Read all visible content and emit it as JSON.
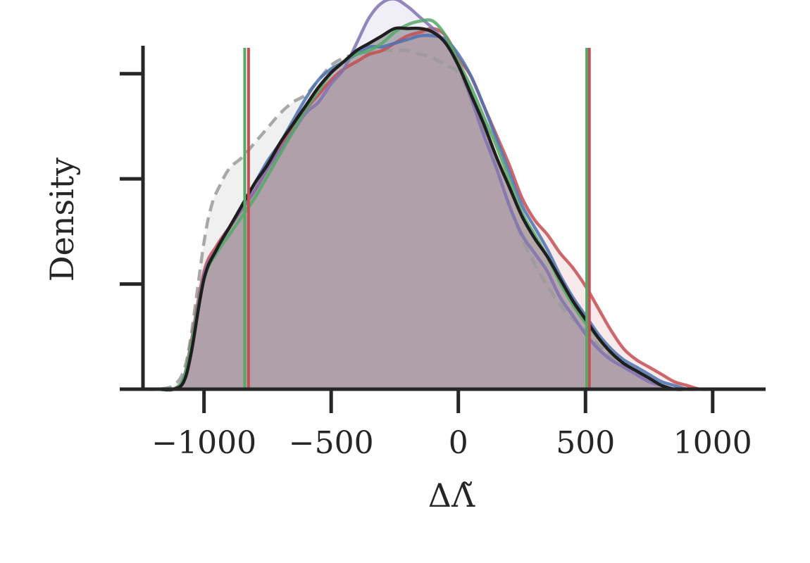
{
  "chart_data": {
    "type": "area",
    "xlabel": "ΔΛ̃",
    "ylabel": "Density",
    "xlim": [
      -1240,
      1200
    ],
    "ylim": [
      0,
      1.0
    ],
    "x_ticks": [
      -1000,
      -500,
      0,
      500,
      1000
    ],
    "x_tick_labels": [
      "−1000",
      "−500",
      "0",
      "500",
      "1000"
    ],
    "y_ticks": [
      0.2857,
      0.5714,
      0.8571
    ],
    "grid": false,
    "legend": "none",
    "series": [
      {
        "color": "#9a9a9a",
        "style": "dashed",
        "fill": "#f0f0f0",
        "x": [
          -1240,
          -1180,
          -1120,
          -1080,
          -1050,
          -1000,
          -970,
          -940,
          -900,
          -850,
          -800,
          -750,
          -700,
          -650,
          -600,
          -550,
          -500,
          -450,
          -400,
          -350,
          -300,
          -250,
          -200,
          -150,
          -100,
          -50,
          0,
          50,
          100,
          150,
          200,
          250,
          300,
          350,
          400,
          450,
          500,
          550,
          600,
          650,
          700,
          750,
          800,
          850,
          900,
          950,
          1000,
          1100,
          1200
        ],
        "y": [
          0.0,
          0.0,
          0.01,
          0.05,
          0.15,
          0.4,
          0.5,
          0.55,
          0.6,
          0.63,
          0.67,
          0.71,
          0.75,
          0.78,
          0.8,
          0.84,
          0.88,
          0.9,
          0.91,
          0.91,
          0.92,
          0.92,
          0.92,
          0.91,
          0.9,
          0.88,
          0.86,
          0.79,
          0.7,
          0.6,
          0.5,
          0.41,
          0.34,
          0.28,
          0.23,
          0.19,
          0.16,
          0.12,
          0.09,
          0.06,
          0.04,
          0.02,
          0.01,
          0.0,
          0.0,
          0.0,
          0.0,
          0.0,
          0.0
        ]
      },
      {
        "color": "#c44e52",
        "style": "solid",
        "x": [
          -1240,
          -1180,
          -1120,
          -1080,
          -1050,
          -1000,
          -950,
          -900,
          -850,
          -800,
          -750,
          -700,
          -650,
          -600,
          -550,
          -500,
          -450,
          -400,
          -350,
          -300,
          -250,
          -200,
          -150,
          -100,
          -50,
          0,
          50,
          100,
          150,
          200,
          250,
          300,
          350,
          400,
          450,
          500,
          550,
          600,
          650,
          700,
          750,
          800,
          850,
          900,
          950,
          1000,
          1100,
          1200
        ],
        "y": [
          0.0,
          0.0,
          0.0,
          0.03,
          0.13,
          0.32,
          0.39,
          0.44,
          0.49,
          0.54,
          0.6,
          0.66,
          0.71,
          0.76,
          0.8,
          0.84,
          0.87,
          0.89,
          0.91,
          0.92,
          0.94,
          0.96,
          0.97,
          0.98,
          0.96,
          0.9,
          0.85,
          0.77,
          0.69,
          0.61,
          0.52,
          0.46,
          0.42,
          0.37,
          0.33,
          0.28,
          0.22,
          0.16,
          0.11,
          0.08,
          0.06,
          0.04,
          0.02,
          0.01,
          0.0,
          0.0,
          0.0,
          0.0
        ]
      },
      {
        "color": "#4c72b0",
        "style": "solid",
        "x": [
          -1240,
          -1180,
          -1120,
          -1080,
          -1050,
          -1000,
          -950,
          -900,
          -850,
          -800,
          -750,
          -700,
          -650,
          -600,
          -550,
          -500,
          -450,
          -400,
          -350,
          -300,
          -250,
          -200,
          -150,
          -100,
          -50,
          0,
          50,
          100,
          150,
          200,
          250,
          300,
          350,
          400,
          450,
          500,
          550,
          600,
          650,
          700,
          750,
          800,
          850,
          900,
          950,
          1000,
          1100,
          1200
        ],
        "y": [
          0.0,
          0.0,
          0.0,
          0.03,
          0.12,
          0.3,
          0.38,
          0.44,
          0.5,
          0.56,
          0.62,
          0.67,
          0.73,
          0.79,
          0.84,
          0.87,
          0.89,
          0.91,
          0.93,
          0.93,
          0.94,
          0.95,
          0.96,
          0.96,
          0.95,
          0.91,
          0.85,
          0.77,
          0.68,
          0.59,
          0.5,
          0.44,
          0.38,
          0.31,
          0.25,
          0.2,
          0.15,
          0.11,
          0.08,
          0.06,
          0.04,
          0.02,
          0.01,
          0.0,
          0.0,
          0.0,
          0.0,
          0.0
        ]
      },
      {
        "color": "#8172b2",
        "style": "solid",
        "x": [
          -1240,
          -1180,
          -1120,
          -1080,
          -1050,
          -1000,
          -950,
          -900,
          -850,
          -800,
          -750,
          -700,
          -650,
          -600,
          -550,
          -500,
          -450,
          -400,
          -350,
          -300,
          -250,
          -200,
          -150,
          -100,
          -50,
          0,
          50,
          100,
          150,
          200,
          250,
          300,
          350,
          400,
          450,
          500,
          550,
          600,
          650,
          700,
          750,
          800,
          850,
          900,
          950,
          1000,
          1100,
          1200
        ],
        "y": [
          0.0,
          0.0,
          0.0,
          0.03,
          0.12,
          0.31,
          0.38,
          0.44,
          0.49,
          0.54,
          0.6,
          0.65,
          0.7,
          0.75,
          0.78,
          0.83,
          0.87,
          0.94,
          1.01,
          1.05,
          1.06,
          1.04,
          1.01,
          0.98,
          0.94,
          0.88,
          0.79,
          0.69,
          0.6,
          0.5,
          0.42,
          0.37,
          0.32,
          0.25,
          0.2,
          0.15,
          0.11,
          0.08,
          0.06,
          0.04,
          0.02,
          0.01,
          0.0,
          0.0,
          0.0,
          0.0,
          0.0,
          0.0
        ]
      },
      {
        "color": "#55a868",
        "style": "solid",
        "x": [
          -1240,
          -1180,
          -1120,
          -1080,
          -1050,
          -1000,
          -950,
          -900,
          -850,
          -800,
          -750,
          -700,
          -650,
          -600,
          -550,
          -500,
          -450,
          -400,
          -350,
          -300,
          -250,
          -200,
          -150,
          -100,
          -50,
          0,
          50,
          100,
          150,
          200,
          250,
          300,
          350,
          400,
          450,
          500,
          550,
          600,
          650,
          700,
          750,
          800,
          850,
          900,
          950,
          1000,
          1100,
          1200
        ],
        "y": [
          0.0,
          0.0,
          0.0,
          0.03,
          0.12,
          0.3,
          0.37,
          0.42,
          0.47,
          0.52,
          0.58,
          0.64,
          0.7,
          0.76,
          0.81,
          0.86,
          0.89,
          0.91,
          0.92,
          0.94,
          0.97,
          0.99,
          1.0,
          1.0,
          0.96,
          0.89,
          0.82,
          0.74,
          0.66,
          0.57,
          0.48,
          0.42,
          0.36,
          0.29,
          0.23,
          0.18,
          0.14,
          0.1,
          0.07,
          0.05,
          0.03,
          0.01,
          0.0,
          0.0,
          0.0,
          0.0,
          0.0,
          0.0
        ]
      },
      {
        "color": "#1e1e1e",
        "style": "solid",
        "fill": "#b0b0b2",
        "x": [
          -1240,
          -1180,
          -1120,
          -1080,
          -1050,
          -1000,
          -950,
          -900,
          -850,
          -800,
          -750,
          -700,
          -650,
          -600,
          -550,
          -500,
          -450,
          -400,
          -350,
          -300,
          -250,
          -200,
          -150,
          -100,
          -50,
          0,
          50,
          100,
          150,
          200,
          250,
          300,
          350,
          400,
          450,
          500,
          550,
          600,
          650,
          700,
          750,
          800,
          850,
          900,
          950,
          1000,
          1100,
          1200
        ],
        "y": [
          0.0,
          0.0,
          0.0,
          0.02,
          0.1,
          0.3,
          0.38,
          0.44,
          0.5,
          0.56,
          0.61,
          0.67,
          0.72,
          0.77,
          0.82,
          0.86,
          0.89,
          0.92,
          0.94,
          0.96,
          0.98,
          0.98,
          0.98,
          0.97,
          0.94,
          0.88,
          0.8,
          0.72,
          0.63,
          0.55,
          0.47,
          0.41,
          0.36,
          0.3,
          0.24,
          0.19,
          0.14,
          0.1,
          0.07,
          0.05,
          0.03,
          0.01,
          0.0,
          0.0,
          0.0,
          0.0,
          0.0,
          0.0
        ]
      }
    ],
    "vlines": [
      {
        "x": -825,
        "color": "#c44e52"
      },
      {
        "x": -840,
        "color": "#55a868"
      },
      {
        "x": 515,
        "color": "#c44e52"
      },
      {
        "x": 505,
        "color": "#55a868"
      }
    ]
  }
}
